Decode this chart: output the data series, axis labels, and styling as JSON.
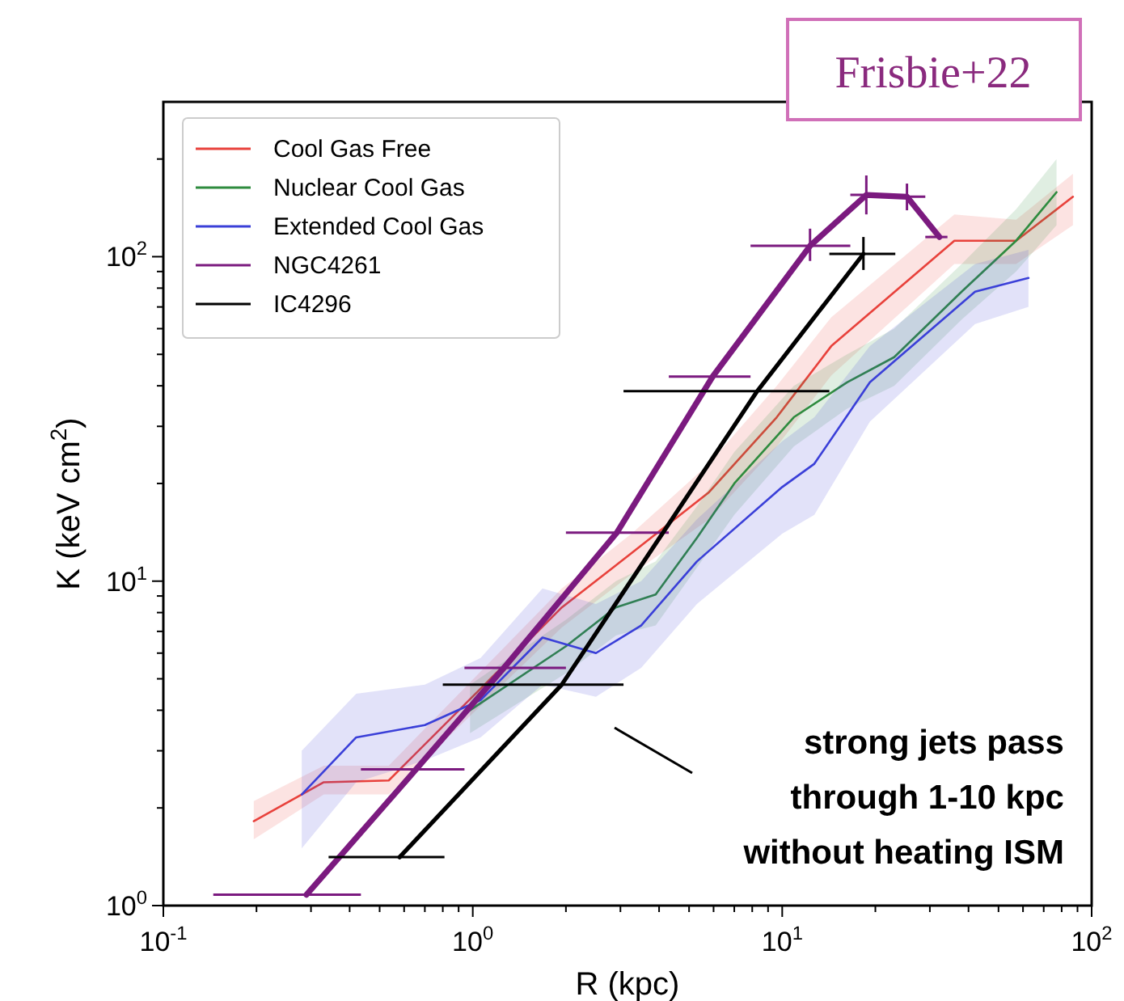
{
  "chart_data": {
    "type": "line",
    "xlabel": "R (kpc)",
    "ylabel": "K (keV cm$^{2}$)",
    "log": "xy",
    "legend": "top left",
    "xlim": [
      0.1,
      100
    ],
    "ylim": [
      1,
      300
    ],
    "xticks": [
      {
        "value": 0.1,
        "label": "10$^{-1}$"
      },
      {
        "value": 0.2,
        "label": null
      },
      {
        "value": 0.3,
        "label": null
      },
      {
        "value": 0.4,
        "label": null
      },
      {
        "value": 0.5,
        "label": null
      },
      {
        "value": 0.6,
        "label": null
      },
      {
        "value": 0.7,
        "label": null
      },
      {
        "value": 0.8,
        "label": null
      },
      {
        "value": 0.9,
        "label": null
      },
      {
        "value": 1,
        "label": "10$^{0}$"
      },
      {
        "value": 2,
        "label": null
      },
      {
        "value": 3,
        "label": null
      },
      {
        "value": 4,
        "label": null
      },
      {
        "value": 5,
        "label": null
      },
      {
        "value": 6,
        "label": null
      },
      {
        "value": 7,
        "label": null
      },
      {
        "value": 8,
        "label": null
      },
      {
        "value": 9,
        "label": null
      },
      {
        "value": 10,
        "label": "10$^{1}$"
      },
      {
        "value": 20,
        "label": null
      },
      {
        "value": 30,
        "label": null
      },
      {
        "value": 40,
        "label": null
      },
      {
        "value": 50,
        "label": null
      },
      {
        "value": 60,
        "label": null
      },
      {
        "value": 70,
        "label": null
      },
      {
        "value": 80,
        "label": null
      },
      {
        "value": 90,
        "label": null
      },
      {
        "value": 100,
        "label": "10$^{2}$"
      }
    ],
    "yticks": [
      {
        "value": 1,
        "label": "10$^{0}$"
      },
      {
        "value": 2,
        "label": null
      },
      {
        "value": 3,
        "label": null
      },
      {
        "value": 4,
        "label": null
      },
      {
        "value": 5,
        "label": null
      },
      {
        "value": 6,
        "label": null
      },
      {
        "value": 7,
        "label": null
      },
      {
        "value": 8,
        "label": null
      },
      {
        "value": 9,
        "label": null
      },
      {
        "value": 10,
        "label": "10$^{1}$"
      },
      {
        "value": 20,
        "label": null
      },
      {
        "value": 30,
        "label": null
      },
      {
        "value": 40,
        "label": null
      },
      {
        "value": 50,
        "label": null
      },
      {
        "value": 60,
        "label": null
      },
      {
        "value": 70,
        "label": null
      },
      {
        "value": 80,
        "label": null
      },
      {
        "value": 90,
        "label": null
      },
      {
        "value": 100,
        "label": "10$^{2}$"
      },
      {
        "value": 200,
        "label": null
      }
    ],
    "series": [
      {
        "name": "Cool Gas Free",
        "color": "#e8413b",
        "x": [
          0.196,
          0.33,
          0.535,
          1.94,
          3.26,
          5.8,
          9.6,
          14.4,
          36,
          57,
          87
        ],
        "values": [
          1.82,
          2.4,
          2.43,
          8.3,
          12.2,
          18.8,
          32,
          53,
          112,
          112,
          153
        ],
        "lower": [
          1.6,
          2.2,
          2.2,
          7.2,
          10.5,
          15.5,
          26,
          43,
          95,
          95,
          125
        ],
        "upper": [
          2.1,
          2.7,
          2.7,
          9.5,
          14,
          23,
          40,
          65,
          135,
          130,
          180
        ]
      },
      {
        "name": "Nuclear Cool Gas",
        "color": "#2e8b3e",
        "x": [
          0.98,
          2.0,
          2.9,
          3.9,
          5.3,
          7.0,
          10.9,
          16.2,
          23,
          38,
          57,
          77
        ],
        "values": [
          4.0,
          6.3,
          8.3,
          9.1,
          13.6,
          20,
          32,
          41,
          49,
          78,
          112,
          158
        ],
        "lower": [
          3.4,
          5.2,
          6.8,
          7.3,
          11,
          16,
          26,
          34,
          40,
          64,
          90,
          125
        ],
        "upper": [
          4.8,
          7.6,
          10,
          11.5,
          17,
          25,
          40,
          50,
          60,
          95,
          140,
          200
        ]
      },
      {
        "name": "Extended Cool Gas",
        "color": "#3a3fd8",
        "x": [
          0.28,
          0.42,
          0.7,
          1.06,
          1.68,
          2.5,
          3.5,
          5.3,
          10,
          12.7,
          19.2,
          42,
          62.5
        ],
        "values": [
          2.2,
          3.3,
          3.6,
          4.3,
          6.7,
          6.0,
          7.3,
          11.5,
          19.5,
          23,
          41,
          78,
          86
        ],
        "lower": [
          1.5,
          2.4,
          2.8,
          3.3,
          4.8,
          4.4,
          5.4,
          8.5,
          14,
          16,
          31,
          62,
          70
        ],
        "upper": [
          3.0,
          4.5,
          4.8,
          5.8,
          9.5,
          8.5,
          10,
          15.5,
          27,
          32,
          53,
          95,
          105
        ]
      },
      {
        "name": "NGC4261",
        "color": "#7b1a7f",
        "x": [
          0.29,
          0.656,
          1.26,
          2.92,
          5.96,
          12.3,
          18.7,
          25.3,
          32.2
        ],
        "values": [
          1.08,
          2.63,
          5.4,
          14.1,
          42.7,
          108,
          155,
          153,
          115
        ],
        "xerrors": [
          [
            0.145,
            0.435
          ],
          [
            0.435,
            0.94
          ],
          [
            0.94,
            2.0
          ],
          [
            2.0,
            4.3
          ],
          [
            4.3,
            7.9
          ],
          [
            7.9,
            16.6
          ],
          [
            16.6,
            21
          ],
          [
            21,
            29
          ],
          [
            29,
            34.2
          ]
        ],
        "errors": [
          null,
          null,
          null,
          null,
          null,
          [
            97,
            122
          ],
          [
            135,
            178
          ],
          [
            139,
            168
          ],
          null
        ]
      },
      {
        "name": "IC4296",
        "color": "#000000",
        "x": [
          0.58,
          1.94,
          8.3,
          18.3
        ],
        "values": [
          1.41,
          4.8,
          38.5,
          102
        ],
        "xerrors": [
          [
            0.342,
            0.81
          ],
          [
            0.8,
            3.07
          ],
          [
            3.07,
            14.2
          ],
          [
            14.2,
            23.2
          ]
        ],
        "errors": [
          null,
          null,
          null,
          [
            91,
            115
          ]
        ]
      }
    ],
    "annotations": [
      "strong jets pass\nthrough 1-10 kpc\nwithout heating ISM",
      "Frisbie+22"
    ]
  }
}
